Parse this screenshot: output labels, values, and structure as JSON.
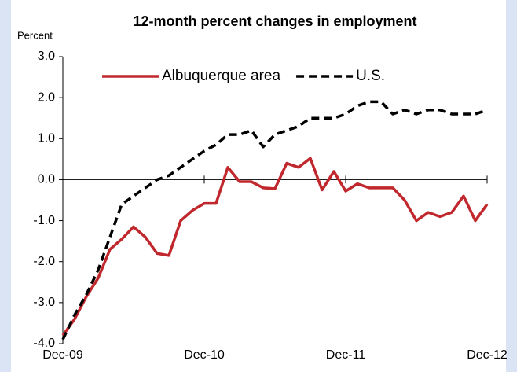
{
  "chart_data": {
    "type": "line",
    "title": "12-month percent changes in employment",
    "y_label": "Percent",
    "categories": [
      "Dec-09",
      null,
      null,
      null,
      null,
      null,
      null,
      null,
      null,
      null,
      null,
      null,
      "Dec-10",
      null,
      null,
      null,
      null,
      null,
      null,
      null,
      null,
      null,
      null,
      null,
      "Dec-11",
      null,
      null,
      null,
      null,
      null,
      null,
      null,
      null,
      null,
      null,
      null,
      "Dec-12"
    ],
    "series": [
      {
        "name": "Albuquerque area",
        "color": "#c0282d",
        "dash": false,
        "values": [
          -3.8,
          -3.4,
          -2.85,
          -2.4,
          -1.7,
          -1.45,
          -1.15,
          -1.4,
          -1.8,
          -1.85,
          -1.0,
          -0.75,
          -0.58,
          -0.58,
          0.3,
          -0.05,
          -0.05,
          -0.2,
          -0.22,
          0.4,
          0.3,
          0.52,
          -0.25,
          0.2,
          -0.28,
          -0.1,
          -0.2,
          -0.2,
          -0.2,
          -0.5,
          -1.0,
          -0.8,
          -0.9,
          -0.8,
          -0.4,
          -1.0,
          -0.6
        ]
      },
      {
        "name": "U.S.",
        "color": "#000000",
        "dash": true,
        "values": [
          -3.9,
          -3.3,
          -2.8,
          -2.2,
          -1.4,
          -0.6,
          -0.4,
          -0.2,
          0.0,
          0.1,
          0.3,
          0.5,
          0.7,
          0.85,
          1.1,
          1.1,
          1.2,
          0.8,
          1.1,
          1.2,
          1.3,
          1.5,
          1.5,
          1.5,
          1.6,
          1.8,
          1.9,
          1.9,
          1.6,
          1.7,
          1.6,
          1.7,
          1.7,
          1.6,
          1.6,
          1.6,
          1.7
        ]
      }
    ],
    "ylim": [
      -4,
      3
    ],
    "yticks": [
      {
        "value": -4,
        "label": "-4.0"
      },
      {
        "value": -3,
        "label": "-3.0"
      },
      {
        "value": -2,
        "label": "-2.0"
      },
      {
        "value": -1,
        "label": "-1.0"
      },
      {
        "value": 0,
        "label": "0.0"
      },
      {
        "value": 1,
        "label": "1.0"
      },
      {
        "value": 2,
        "label": "2.0"
      },
      {
        "value": 3,
        "label": "3.0"
      }
    ],
    "grid": false,
    "legend": "top"
  }
}
